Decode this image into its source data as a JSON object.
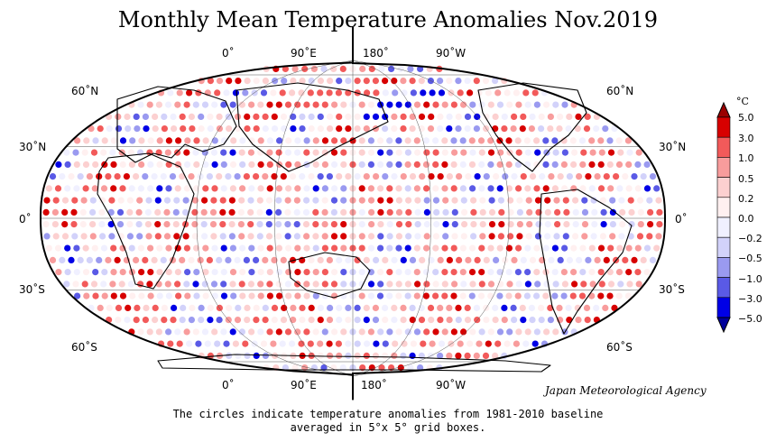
{
  "title": "Monthly Mean Temperature Anomalies Nov.2019",
  "longitude_labels_top": [
    "0˚",
    "90˚E",
    "180˚",
    "90˚W"
  ],
  "longitude_labels_bottom": [
    "0˚",
    "90˚E",
    "180˚",
    "90˚W"
  ],
  "latitude_labels_left": [
    "60˚N",
    "30˚N",
    "0˚",
    "30˚S",
    "60˚S"
  ],
  "latitude_labels_right": [
    "60˚N",
    "30˚N",
    "0˚",
    "30˚S",
    "60˚S"
  ],
  "agency": "Japan Meteorological Agency",
  "caption_line1": "The circles indicate temperature anomalies from 1981-2010 baseline",
  "caption_line2": "averaged in 5°x 5° grid boxes.",
  "legend": {
    "unit": "°C",
    "ticks": [
      "5.0",
      "3.0",
      "1.0",
      "0.5",
      "0.2",
      "0.0",
      "−0.2",
      "−0.5",
      "−1.0",
      "−3.0",
      "−5.0"
    ],
    "bins": [
      {
        "color": "#d70000"
      },
      {
        "color": "#f25a5a"
      },
      {
        "color": "#f89c9c"
      },
      {
        "color": "#fcd0d0"
      },
      {
        "color": "#fff0f0"
      },
      {
        "color": "#f0f0ff"
      },
      {
        "color": "#d2d2fa"
      },
      {
        "color": "#9a9af0"
      },
      {
        "color": "#5a5ae6"
      },
      {
        "color": "#0000e6"
      }
    ]
  }
}
